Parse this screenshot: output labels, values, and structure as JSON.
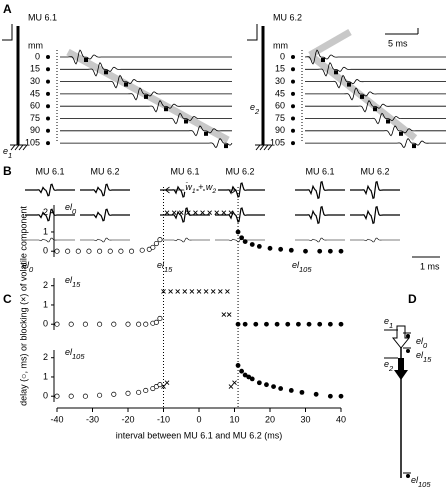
{
  "panel_a": {
    "label": "A",
    "units": "mm",
    "depths": [
      0,
      15,
      30,
      45,
      60,
      75,
      90,
      105
    ],
    "scale_label": "5 ms",
    "left": {
      "title": "MU 6.1",
      "electrode": {
        "parts": [
          [
            "e",
            "1"
          ]
        ]
      }
    },
    "right": {
      "title": "MU 6.2",
      "electrode": {
        "parts": [
          [
            "e",
            "2"
          ]
        ]
      }
    }
  },
  "panel_b": {
    "label": "B",
    "scale_label": "1 ms",
    "groups": [
      {
        "columns": [
          "MU 6.1",
          "MU 6.2"
        ],
        "electrode": {
          "parts": [
            [
              "el",
              "0"
            ]
          ]
        }
      },
      {
        "columns": [
          "MU 6.1",
          "MU 6.2"
        ],
        "electrode": {
          "parts": [
            [
              "el",
              "15"
            ]
          ]
        }
      },
      {
        "columns": [
          "MU 6.1",
          "MU 6.2"
        ],
        "electrode": {
          "parts": [
            [
              "el",
              "105"
            ]
          ]
        }
      }
    ]
  },
  "panel_c": {
    "label": "C",
    "y_label": "delay (○, ms) or blocking (×) of volatile component",
    "x_label": "interval between MU 6.1 and MU 6.2 (ms)",
    "xlim": [
      -40,
      40
    ],
    "xticks": [
      -40,
      -30,
      -20,
      -10,
      0,
      10,
      20,
      30,
      40
    ],
    "window": [
      -10,
      11
    ],
    "window_label": {
      "parts": [
        [
          "w",
          "1"
        ],
        [
          " + w",
          "2"
        ]
      ]
    },
    "subplots": [
      {
        "electrode": {
          "parts": [
            [
              "el",
              "0"
            ]
          ]
        },
        "ylim": [
          -0.3,
          2.4
        ],
        "yticks": [
          0,
          1,
          2
        ],
        "open": {
          "x": [
            -40,
            -37,
            -34,
            -31,
            -28,
            -25,
            -22,
            -19,
            -16,
            -14,
            -13,
            -12,
            -11
          ],
          "y": [
            0,
            0,
            0,
            0,
            0,
            0,
            0,
            0,
            0.05,
            0.1,
            0.2,
            0.4,
            0.6
          ]
        },
        "cross": {
          "x": [
            -9,
            -7,
            -5,
            -3,
            -1,
            1,
            3,
            5,
            7,
            9
          ],
          "y": [
            2,
            2,
            2,
            2,
            2,
            2,
            2,
            2,
            2,
            2
          ]
        },
        "filled": {
          "x": [
            11,
            12,
            13,
            15,
            17,
            20,
            23,
            26,
            30,
            34,
            37,
            40
          ],
          "y": [
            1,
            0.7,
            0.5,
            0.35,
            0.25,
            0.15,
            0.1,
            0.05,
            0,
            0,
            0,
            0
          ]
        }
      },
      {
        "electrode": {
          "parts": [
            [
              "el",
              "15"
            ]
          ]
        },
        "ylim": [
          -0.3,
          2.4
        ],
        "yticks": [
          0,
          1,
          2
        ],
        "open": {
          "x": [
            -40,
            -36,
            -32,
            -28,
            -24,
            -20,
            -17,
            -15,
            -13,
            -12,
            -11
          ],
          "y": [
            0,
            0,
            0,
            0,
            0,
            0,
            0,
            0,
            0.05,
            0.1,
            0.3
          ]
        },
        "cross": {
          "x": [
            -10,
            -8,
            -6,
            -4,
            -2,
            0,
            2,
            4,
            6,
            8,
            7,
            8.5
          ],
          "y": [
            1.7,
            1.7,
            1.7,
            1.7,
            1.7,
            1.7,
            1.7,
            1.7,
            1.7,
            1.7,
            0.5,
            0.5
          ]
        },
        "filled": {
          "x": [
            11,
            13,
            16,
            19,
            22,
            25,
            28,
            31,
            34,
            37,
            40
          ],
          "y": [
            0,
            0,
            0,
            0,
            0,
            0,
            0,
            0,
            0,
            0,
            0
          ]
        }
      },
      {
        "electrode": {
          "parts": [
            [
              "el",
              "105"
            ]
          ]
        },
        "ylim": [
          -0.3,
          2.4
        ],
        "yticks": [
          0,
          1,
          2
        ],
        "open": {
          "x": [
            -40,
            -36,
            -32,
            -28,
            -24,
            -20,
            -17,
            -15,
            -13,
            -12,
            -11
          ],
          "y": [
            0,
            0,
            0,
            0.05,
            0.1,
            0.15,
            0.2,
            0.3,
            0.4,
            0.5,
            0.6
          ]
        },
        "cross": {
          "x": [
            -10,
            -9,
            9,
            10
          ],
          "y": [
            0.5,
            0.7,
            0.5,
            0.7
          ]
        },
        "filled": {
          "x": [
            11,
            12,
            13,
            14,
            15,
            17,
            19,
            21,
            23,
            26,
            29,
            33,
            37,
            40
          ],
          "y": [
            1.6,
            1.3,
            1.1,
            1,
            0.9,
            0.7,
            0.6,
            0.5,
            0.4,
            0.3,
            0.2,
            0.1,
            0,
            0
          ]
        }
      }
    ]
  },
  "panel_d": {
    "label": "D",
    "e1": {
      "parts": [
        [
          "e",
          "1"
        ]
      ]
    },
    "e2": {
      "parts": [
        [
          "e",
          "2"
        ]
      ]
    },
    "el0": {
      "parts": [
        [
          "el",
          "0"
        ]
      ]
    },
    "el15": {
      "parts": [
        [
          "el",
          "15"
        ]
      ]
    },
    "el105": {
      "parts": [
        [
          "el",
          "105"
        ]
      ]
    }
  }
}
